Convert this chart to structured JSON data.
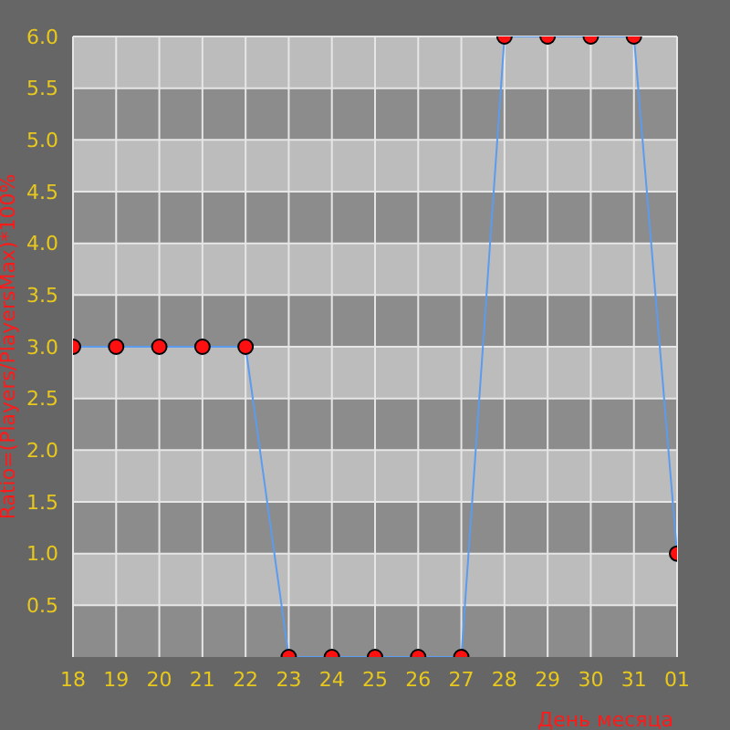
{
  "chart_data": {
    "type": "line",
    "xlabel": "День месяца",
    "ylabel": "Ratio=(Players/PlayersMax)*100%",
    "categories": [
      "18",
      "19",
      "20",
      "21",
      "22",
      "23",
      "24",
      "25",
      "26",
      "27",
      "28",
      "29",
      "30",
      "31",
      "01"
    ],
    "series": [
      {
        "color": "#5b9bf0",
        "values": [
          3,
          3,
          3,
          3,
          3,
          0,
          0,
          0,
          0,
          0,
          6,
          6,
          6,
          6,
          1
        ]
      }
    ],
    "ylim": [
      0,
      6
    ],
    "yticks": [
      0.5,
      {
        "value": 1,
        "label": "1.0"
      },
      1.5,
      {
        "value": 2,
        "label": "2.0"
      },
      2.5,
      {
        "value": 3,
        "label": "3.0"
      },
      3.5,
      {
        "value": 4,
        "label": "4.0"
      },
      4.5,
      {
        "value": 5,
        "label": "5.0"
      },
      5.5,
      {
        "value": 6,
        "label": "6.0"
      }
    ],
    "grid": true,
    "marker": "circle"
  }
}
